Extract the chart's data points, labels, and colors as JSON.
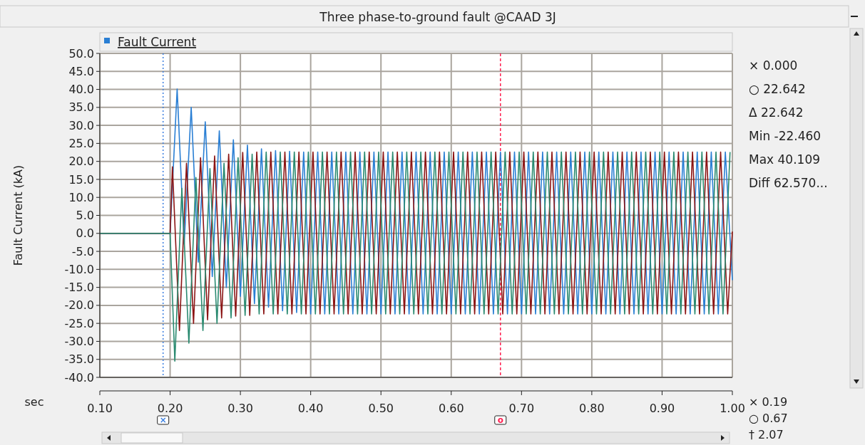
{
  "chart_data": {
    "type": "line",
    "title": "Three phase-to-ground fault @CAAD 3J",
    "xlabel": "sec",
    "ylabel": "Fault Current (kA)",
    "xlim": [
      0.1,
      1.0
    ],
    "ylim": [
      -40,
      50
    ],
    "xticks": [
      {
        "value": 0.1,
        "label": "0.10"
      },
      {
        "value": 0.2,
        "label": "0.20"
      },
      {
        "value": 0.3,
        "label": "0.30"
      },
      {
        "value": 0.4,
        "label": "0.40"
      },
      {
        "value": 0.5,
        "label": "0.50"
      },
      {
        "value": 0.6,
        "label": "0.60"
      },
      {
        "value": 0.7,
        "label": "0.70"
      },
      {
        "value": 0.8,
        "label": "0.80"
      },
      {
        "value": 0.9,
        "label": "0.90"
      },
      {
        "value": 1.0,
        "label": "1.00"
      }
    ],
    "yticks": [
      {
        "value": -40,
        "label": "-40.0"
      },
      {
        "value": -35,
        "label": "-35.0"
      },
      {
        "value": -30,
        "label": "-30.0"
      },
      {
        "value": -25,
        "label": "-25.0"
      },
      {
        "value": -20,
        "label": "-20.0"
      },
      {
        "value": -15,
        "label": "-15.0"
      },
      {
        "value": -10,
        "label": "-10.0"
      },
      {
        "value": -5,
        "label": "-5.0"
      },
      {
        "value": 0,
        "label": "0.0"
      },
      {
        "value": 5,
        "label": "5.0"
      },
      {
        "value": 10,
        "label": "10.0"
      },
      {
        "value": 15,
        "label": "15.0"
      },
      {
        "value": 20,
        "label": "20.0"
      },
      {
        "value": 25,
        "label": "25.0"
      },
      {
        "value": 30,
        "label": "30.0"
      },
      {
        "value": 35,
        "label": "35.0"
      },
      {
        "value": 40,
        "label": "40.0"
      },
      {
        "value": 45,
        "label": "45.0"
      },
      {
        "value": 50,
        "label": "50.0"
      }
    ],
    "grid": true,
    "legend": "top left",
    "line_style": "solid",
    "series": [
      {
        "name": "Fault Current",
        "color": "#2a7fd4",
        "x": [
          0.1,
          0.2,
          0.21,
          0.22,
          0.23,
          0.24,
          0.25,
          0.26,
          0.27,
          0.28,
          0.29,
          0.3,
          0.31,
          0.32,
          0.33,
          0.34,
          0.35,
          0.36,
          0.37,
          0.38,
          0.39,
          0.4,
          0.41,
          0.42,
          0.43,
          0.44,
          0.45,
          0.46,
          0.47,
          0.48,
          0.49,
          0.5,
          0.51,
          0.52,
          0.53,
          0.54,
          0.55,
          0.56,
          0.57,
          0.58,
          0.59,
          0.6,
          0.61,
          0.62,
          0.63,
          0.64,
          0.65,
          0.66,
          0.67,
          0.68,
          0.69,
          0.7,
          0.71,
          0.72,
          0.73,
          0.74,
          0.75,
          0.76,
          0.77,
          0.78,
          0.79,
          0.8,
          0.81,
          0.82,
          0.83,
          0.84,
          0.85,
          0.86,
          0.87,
          0.88,
          0.89,
          0.9,
          0.91,
          0.92,
          0.93,
          0.94,
          0.95,
          0.96,
          0.97,
          0.98,
          0.99,
          1.0
        ],
        "values": [
          0,
          0,
          40.1,
          -3,
          35,
          -8,
          31,
          -12,
          28.5,
          -15,
          26,
          -17.5,
          24.5,
          -19.5,
          23.5,
          -20.5,
          23,
          -21.5,
          22.8,
          -22,
          22.6,
          -22.4,
          22.6,
          -22.4,
          22.6,
          -22.4,
          22.6,
          -22.4,
          22.6,
          -22.4,
          22.6,
          -22.4,
          22.6,
          -22.4,
          22.6,
          -22.4,
          22.6,
          -22.4,
          22.6,
          -22.4,
          22.6,
          -22.4,
          22.6,
          -22.4,
          22.6,
          -22.4,
          22.6,
          -22.4,
          22.6,
          -22.4,
          22.6,
          -22.4,
          22.6,
          -22.4,
          22.6,
          -22.4,
          22.6,
          -22.4,
          22.6,
          -22.4,
          22.6,
          -22.4,
          22.6,
          -22.4,
          22.6,
          -22.4,
          22.6,
          -22.4,
          22.6,
          -22.4,
          22.6,
          -22.4,
          22.6,
          -22.4,
          22.6,
          -22.4,
          22.6,
          -22.4,
          22.6,
          -22.4,
          22.6,
          -13
        ]
      },
      {
        "color": "#8b1414",
        "x": [
          0.1,
          0.2,
          0.2033,
          0.2133,
          0.2233,
          0.2333,
          0.2433,
          0.2533,
          0.2633,
          0.2733,
          0.2833,
          0.2933,
          0.3033,
          0.3133,
          0.3233,
          0.3333,
          0.3433,
          0.3533,
          0.3633,
          0.3733,
          0.3833,
          0.3933,
          0.4033,
          0.4133,
          0.4233,
          0.4333,
          0.4433,
          0.4533,
          0.4633,
          0.4733,
          0.4833,
          0.4933,
          0.5033,
          0.5133,
          0.5233,
          0.5333,
          0.5433,
          0.5533,
          0.5633,
          0.5733,
          0.5833,
          0.5933,
          0.6033,
          0.6133,
          0.6233,
          0.6333,
          0.6433,
          0.6533,
          0.6633,
          0.6733,
          0.6833,
          0.6933,
          0.7033,
          0.7133,
          0.7233,
          0.7333,
          0.7433,
          0.7533,
          0.7633,
          0.7733,
          0.7833,
          0.7933,
          0.8033,
          0.8133,
          0.8233,
          0.8333,
          0.8433,
          0.8533,
          0.8633,
          0.8733,
          0.8833,
          0.8933,
          0.9033,
          0.9133,
          0.9233,
          0.9333,
          0.9433,
          0.9533,
          0.9633,
          0.9733,
          0.9833,
          0.9933,
          1.0
        ],
        "values": [
          0,
          0,
          18.5,
          -27,
          19.5,
          -25,
          21,
          -24,
          21.5,
          -23.5,
          22,
          -23,
          22.5,
          -22.8,
          22.6,
          -22.4,
          22.6,
          -22.4,
          22.6,
          -22.4,
          22.6,
          -22.4,
          22.6,
          -22.4,
          22.6,
          -22.4,
          22.6,
          -22.4,
          22.6,
          -22.4,
          22.6,
          -22.4,
          22.6,
          -22.4,
          22.6,
          -22.4,
          22.6,
          -22.4,
          22.6,
          -22.4,
          22.6,
          -22.4,
          22.6,
          -22.4,
          22.6,
          -22.4,
          22.6,
          -22.4,
          22.6,
          -22.4,
          22.6,
          -22.4,
          22.6,
          -22.4,
          22.6,
          -22.4,
          22.6,
          -22.4,
          22.6,
          -22.4,
          22.6,
          -22.4,
          22.6,
          -22.4,
          22.6,
          -22.4,
          22.6,
          -22.4,
          22.6,
          -22.4,
          22.6,
          -22.4,
          22.6,
          -22.4,
          22.6,
          -22.4,
          22.6,
          -22.4,
          22.6,
          -22.4,
          22.6,
          -22.4,
          0.5
        ]
      },
      {
        "color": "#2a8a70",
        "x": [
          0.1,
          0.2,
          0.2067,
          0.2167,
          0.2267,
          0.2367,
          0.2467,
          0.2567,
          0.2667,
          0.2767,
          0.2867,
          0.2967,
          0.3067,
          0.3167,
          0.3267,
          0.3367,
          0.3467,
          0.3567,
          0.3667,
          0.3767,
          0.3867,
          0.3967,
          0.4067,
          0.4167,
          0.4267,
          0.4367,
          0.4467,
          0.4567,
          0.4667,
          0.4767,
          0.4867,
          0.4967,
          0.5067,
          0.5167,
          0.5267,
          0.5367,
          0.5467,
          0.5567,
          0.5667,
          0.5767,
          0.5867,
          0.5967,
          0.6067,
          0.6167,
          0.6267,
          0.6367,
          0.6467,
          0.6567,
          0.6667,
          0.6767,
          0.6867,
          0.6967,
          0.7067,
          0.7167,
          0.7267,
          0.7367,
          0.7467,
          0.7567,
          0.7667,
          0.7767,
          0.7867,
          0.7967,
          0.8067,
          0.8167,
          0.8267,
          0.8367,
          0.8467,
          0.8567,
          0.8667,
          0.8767,
          0.8867,
          0.8967,
          0.9067,
          0.9167,
          0.9267,
          0.9367,
          0.9467,
          0.9567,
          0.9667,
          0.9767,
          0.9867,
          0.9967
        ],
        "values": [
          0,
          0,
          -35.5,
          12.5,
          -30.5,
          15.5,
          -27,
          18,
          -25,
          19.5,
          -23.5,
          21,
          -22.8,
          22,
          -22.4,
          22.6,
          -22.4,
          22.6,
          -22.4,
          22.6,
          -22.4,
          22.6,
          -22.4,
          22.6,
          -22.4,
          22.6,
          -22.4,
          22.6,
          -22.4,
          22.6,
          -22.4,
          22.6,
          -22.4,
          22.6,
          -22.4,
          22.6,
          -22.4,
          22.6,
          -22.4,
          22.6,
          -22.4,
          22.6,
          -22.4,
          22.6,
          -22.4,
          22.6,
          -22.4,
          22.6,
          -22.4,
          22.6,
          -22.4,
          22.6,
          -22.4,
          22.6,
          -22.4,
          22.6,
          -22.4,
          22.6,
          -22.4,
          22.6,
          -22.4,
          22.6,
          -22.4,
          22.6,
          -22.4,
          22.6,
          -22.4,
          22.6,
          -22.4,
          22.6,
          -22.4,
          22.6,
          -22.4,
          22.6,
          -22.4,
          22.6,
          -22.4,
          22.6,
          -22.4,
          22.6,
          -22.4,
          22.6
        ]
      }
    ],
    "ref_lines": [
      {
        "axis": "x",
        "value": 0.19,
        "label": "×",
        "color": "#3b7fe0",
        "line_style": "dotted"
      },
      {
        "axis": "x",
        "value": 0.67,
        "label": "o",
        "color": "#ff2050",
        "line_style": "dashed"
      }
    ],
    "annotations": [
      "× 0.000",
      "○ 22.642",
      "Δ 22.642",
      "Min -22.460",
      "Max 40.109",
      "Diff 62.570...",
      "× 0.19",
      "○ 0.67",
      "† 2.07"
    ]
  }
}
